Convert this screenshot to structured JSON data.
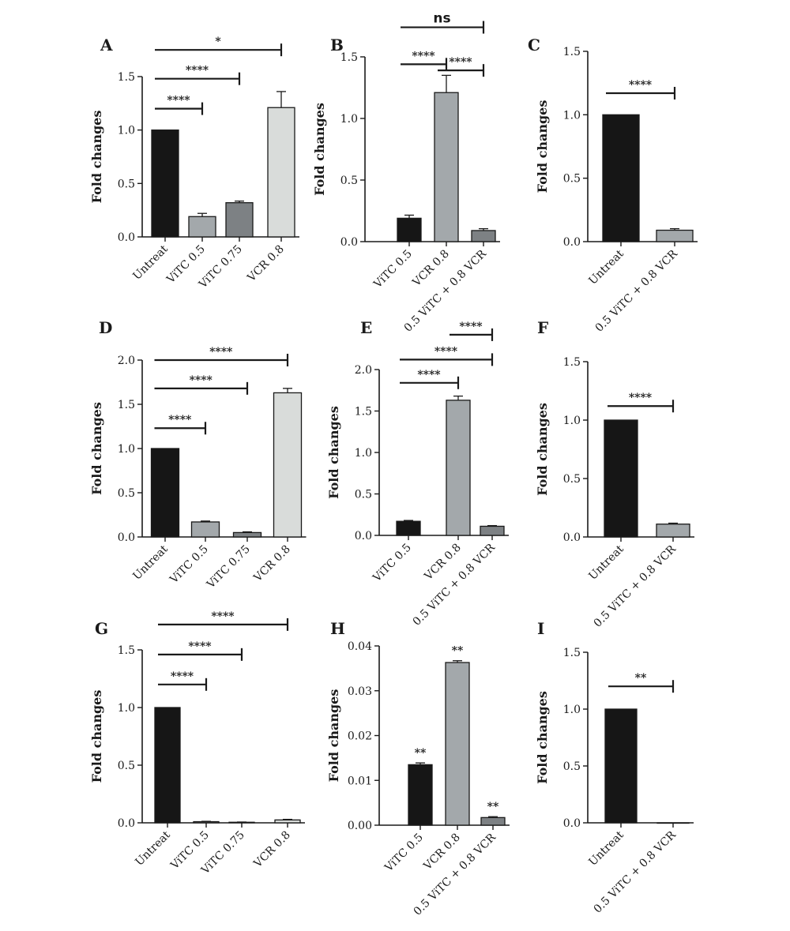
{
  "figure": {
    "panels": [
      "A",
      "B",
      "C",
      "D",
      "E",
      "F",
      "G",
      "H",
      "I"
    ]
  },
  "colors": {
    "black": "#161616",
    "mid_gray": "#a3a8ab",
    "dark_gray": "#7d8184",
    "light_gray": "#d9dcda",
    "axis": "#1a1a1a"
  },
  "chart_data": [
    {
      "panel": "A",
      "type": "bar",
      "ylabel": "Fold changes",
      "categories": [
        "Untreat",
        "ViTC 0.5",
        "ViTC 0.75",
        "VCR 0.8"
      ],
      "values": [
        1.0,
        0.19,
        0.32,
        1.21
      ],
      "errors": [
        0,
        0.03,
        0.015,
        0.15
      ],
      "bar_colors": [
        "black",
        "mid_gray",
        "dark_gray",
        "light_gray"
      ],
      "ylim": [
        0,
        1.5
      ],
      "yticks": [
        "0.0",
        "0.5",
        "1.0",
        "1.5"
      ],
      "significance": [
        {
          "from": 0,
          "to": 1,
          "label": "****",
          "level": 1.2
        },
        {
          "from": 0,
          "to": 2,
          "label": "****",
          "level": 1.48
        },
        {
          "from": 0,
          "to": 3,
          "label": "*",
          "level": 1.75
        }
      ],
      "bar_labels": []
    },
    {
      "panel": "B",
      "type": "bar",
      "ylabel": "Fold changes",
      "categories": [
        "ViTC 0.5",
        "VCR 0.8",
        "0.5 ViTC + 0.8 VCR"
      ],
      "values": [
        0.19,
        1.21,
        0.09
      ],
      "errors": [
        0.025,
        0.14,
        0.015
      ],
      "bar_colors": [
        "black",
        "mid_gray",
        "dark_gray"
      ],
      "ylim": [
        0,
        1.5
      ],
      "yticks": [
        "0.0",
        "0.5",
        "1.0",
        "1.5"
      ],
      "significance": [
        {
          "from": 0,
          "to": 1,
          "label": "****",
          "level": 1.44
        },
        {
          "from": 1,
          "to": 2,
          "label": "****",
          "level": 1.39
        },
        {
          "from": 0,
          "to": 2,
          "label": "ns",
          "level": 1.74
        }
      ],
      "bar_labels": []
    },
    {
      "panel": "C",
      "type": "bar",
      "ylabel": "Fold changes",
      "categories": [
        "Untreat",
        "0.5 ViTC + 0.8 VCR"
      ],
      "values": [
        1.0,
        0.09
      ],
      "errors": [
        0,
        0.012
      ],
      "bar_colors": [
        "black",
        "mid_gray"
      ],
      "ylim": [
        0,
        1.5
      ],
      "yticks": [
        "0.0",
        "0.5",
        "1.0",
        "1.5"
      ],
      "significance": [
        {
          "from": 0,
          "to": 1,
          "label": "****",
          "level": 1.17
        }
      ],
      "bar_labels": []
    },
    {
      "panel": "D",
      "type": "bar",
      "ylabel": "Fold changes",
      "categories": [
        "Untreat",
        "ViTC 0.5",
        "ViTC 0.75",
        "VCR 0.8"
      ],
      "values": [
        1.0,
        0.17,
        0.05,
        1.63
      ],
      "errors": [
        0,
        0.01,
        0.008,
        0.05
      ],
      "bar_colors": [
        "black",
        "mid_gray",
        "dark_gray",
        "light_gray"
      ],
      "ylim": [
        0,
        2.0
      ],
      "yticks": [
        "0.0",
        "0.5",
        "1.0",
        "1.5",
        "2.0"
      ],
      "significance": [
        {
          "from": 0,
          "to": 1,
          "label": "****",
          "level": 1.23
        },
        {
          "from": 0,
          "to": 2,
          "label": "****",
          "level": 1.68
        },
        {
          "from": 0,
          "to": 3,
          "label": "****",
          "level": 2.0
        }
      ],
      "bar_labels": []
    },
    {
      "panel": "E",
      "type": "bar",
      "ylabel": "Fold changes",
      "categories": [
        "ViTC 0.5",
        "VCR 0.8",
        "0.5 ViTC + 0.8 VCR"
      ],
      "values": [
        0.17,
        1.63,
        0.11
      ],
      "errors": [
        0.01,
        0.05,
        0.008
      ],
      "bar_colors": [
        "black",
        "mid_gray",
        "dark_gray"
      ],
      "ylim": [
        0,
        2.0
      ],
      "yticks": [
        "0.0",
        "0.5",
        "1.0",
        "1.5",
        "2.0"
      ],
      "significance": [
        {
          "from": 0,
          "to": 1,
          "label": "****",
          "level": 1.84
        },
        {
          "from": 0,
          "to": 2,
          "label": "****",
          "level": 2.12
        },
        {
          "from": 1,
          "to": 2,
          "label": "****",
          "level": 2.42
        }
      ],
      "bar_labels": []
    },
    {
      "panel": "F",
      "type": "bar",
      "ylabel": "Fold changes",
      "categories": [
        "Untreat",
        "0.5 ViTC + 0.8 VCR"
      ],
      "values": [
        1.0,
        0.11
      ],
      "errors": [
        0,
        0.008
      ],
      "bar_colors": [
        "black",
        "mid_gray"
      ],
      "ylim": [
        0,
        1.5
      ],
      "yticks": [
        "0.0",
        "0.5",
        "1.0",
        "1.5"
      ],
      "significance": [
        {
          "from": 0,
          "to": 1,
          "label": "****",
          "level": 1.12
        }
      ],
      "bar_labels": []
    },
    {
      "panel": "G",
      "type": "bar",
      "ylabel": "Fold changes",
      "categories": [
        "Untreat",
        "ViTC 0.5",
        "ViTC 0.75",
        "VCR 0.8"
      ],
      "values": [
        1.0,
        0.01,
        0.005,
        0.025
      ],
      "errors": [
        0,
        0.003,
        0.002,
        0.005
      ],
      "bar_colors": [
        "black",
        "mid_gray",
        "dark_gray",
        "light_gray"
      ],
      "ylim": [
        0,
        1.5
      ],
      "yticks": [
        "0.0",
        "0.5",
        "1.0",
        "1.5"
      ],
      "significance": [
        {
          "from": 0,
          "to": 1,
          "label": "****",
          "level": 1.2
        },
        {
          "from": 0,
          "to": 2,
          "label": "****",
          "level": 1.46
        },
        {
          "from": 0,
          "to": 3,
          "label": "****",
          "level": 1.72
        }
      ],
      "bar_labels": []
    },
    {
      "panel": "H",
      "type": "bar",
      "ylabel": "Fold changes",
      "categories": [
        "ViTC 0.5",
        "VCR 0.8",
        "0.5 ViTC + 0.8 VCR"
      ],
      "values": [
        0.0135,
        0.0363,
        0.0017
      ],
      "errors": [
        0.0004,
        0.0004,
        0.0002
      ],
      "bar_colors": [
        "black",
        "mid_gray",
        "dark_gray"
      ],
      "ylim": [
        0,
        0.04
      ],
      "yticks": [
        "0.00",
        "0.01",
        "0.02",
        "0.03",
        "0.04"
      ],
      "significance": [],
      "bar_labels": [
        "**",
        "**",
        "**"
      ]
    },
    {
      "panel": "I",
      "type": "bar",
      "ylabel": "Fold changes",
      "categories": [
        "Untreat",
        "0.5 ViTC + 0.8 VCR"
      ],
      "values": [
        1.0,
        0.0
      ],
      "errors": [
        0,
        0
      ],
      "bar_colors": [
        "black",
        "mid_gray"
      ],
      "ylim": [
        0,
        1.5
      ],
      "yticks": [
        "0.0",
        "0.5",
        "1.0",
        "1.5"
      ],
      "significance": [
        {
          "from": 0,
          "to": 1,
          "label": "**",
          "level": 1.2
        }
      ],
      "bar_labels": []
    }
  ]
}
